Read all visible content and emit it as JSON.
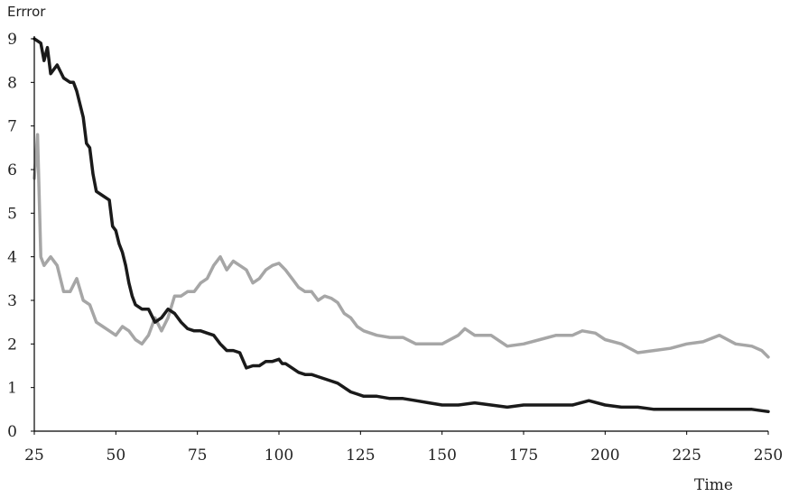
{
  "chart_data": {
    "type": "line",
    "title": "",
    "xlabel": "Time",
    "ylabel": "Errror",
    "xlim": [
      25,
      250
    ],
    "ylim": [
      0,
      9
    ],
    "xticks": [
      25,
      50,
      75,
      100,
      125,
      150,
      175,
      200,
      225,
      250
    ],
    "yticks": [
      0,
      1,
      2,
      3,
      4,
      5,
      6,
      7,
      8,
      9
    ],
    "grid": false,
    "legend": "none",
    "series": [
      {
        "color": "#1a1a1a",
        "x": [
          25,
          27,
          28,
          29,
          30,
          32,
          34,
          36,
          37,
          38,
          40,
          41,
          42,
          43,
          44,
          46,
          48,
          49,
          50,
          51,
          52,
          53,
          54,
          55,
          56,
          58,
          60,
          62,
          64,
          66,
          68,
          70,
          72,
          74,
          76,
          78,
          80,
          82,
          84,
          86,
          88,
          90,
          92,
          94,
          96,
          98,
          100,
          101,
          102,
          104,
          106,
          108,
          110,
          112,
          114,
          116,
          118,
          120,
          122,
          124,
          126,
          130,
          134,
          138,
          142,
          146,
          150,
          155,
          160,
          165,
          170,
          175,
          180,
          185,
          190,
          195,
          200,
          205,
          210,
          215,
          220,
          225,
          230,
          235,
          240,
          245,
          250
        ],
        "y": [
          9.0,
          8.9,
          8.5,
          8.8,
          8.2,
          8.4,
          8.1,
          8.0,
          8.0,
          7.8,
          7.2,
          6.6,
          6.5,
          5.9,
          5.5,
          5.4,
          5.3,
          4.7,
          4.6,
          4.3,
          4.1,
          3.8,
          3.4,
          3.1,
          2.9,
          2.8,
          2.8,
          2.5,
          2.6,
          2.8,
          2.7,
          2.5,
          2.35,
          2.3,
          2.3,
          2.25,
          2.2,
          2.0,
          1.85,
          1.85,
          1.8,
          1.45,
          1.5,
          1.5,
          1.6,
          1.6,
          1.65,
          1.55,
          1.55,
          1.45,
          1.35,
          1.3,
          1.3,
          1.25,
          1.2,
          1.15,
          1.1,
          1.0,
          0.9,
          0.85,
          0.8,
          0.8,
          0.75,
          0.75,
          0.7,
          0.65,
          0.6,
          0.6,
          0.65,
          0.6,
          0.55,
          0.6,
          0.6,
          0.6,
          0.6,
          0.7,
          0.6,
          0.55,
          0.55,
          0.5,
          0.5,
          0.5,
          0.5,
          0.5,
          0.5,
          0.5,
          0.45
        ]
      },
      {
        "color": "#a6a6a6",
        "x": [
          25,
          26,
          27,
          28,
          30,
          32,
          34,
          36,
          38,
          40,
          42,
          44,
          46,
          48,
          50,
          52,
          54,
          56,
          58,
          60,
          62,
          64,
          66,
          68,
          70,
          72,
          74,
          76,
          78,
          80,
          82,
          84,
          86,
          88,
          90,
          92,
          94,
          96,
          98,
          100,
          102,
          104,
          106,
          108,
          110,
          112,
          114,
          116,
          118,
          120,
          122,
          124,
          126,
          130,
          134,
          138,
          142,
          146,
          150,
          155,
          157,
          160,
          165,
          170,
          175,
          180,
          185,
          190,
          193,
          197,
          200,
          205,
          210,
          215,
          220,
          225,
          230,
          235,
          240,
          245,
          248,
          250
        ],
        "y": [
          5.8,
          6.8,
          4.0,
          3.8,
          4.0,
          3.8,
          3.2,
          3.2,
          3.5,
          3.0,
          2.9,
          2.5,
          2.4,
          2.3,
          2.2,
          2.4,
          2.3,
          2.1,
          2.0,
          2.2,
          2.6,
          2.3,
          2.6,
          3.1,
          3.1,
          3.2,
          3.2,
          3.4,
          3.5,
          3.8,
          4.0,
          3.7,
          3.9,
          3.8,
          3.7,
          3.4,
          3.5,
          3.7,
          3.8,
          3.85,
          3.7,
          3.5,
          3.3,
          3.2,
          3.2,
          3.0,
          3.1,
          3.05,
          2.95,
          2.7,
          2.6,
          2.4,
          2.3,
          2.2,
          2.15,
          2.15,
          2.0,
          2.0,
          2.0,
          2.2,
          2.35,
          2.2,
          2.2,
          1.95,
          2.0,
          2.1,
          2.2,
          2.2,
          2.3,
          2.25,
          2.1,
          2.0,
          1.8,
          1.85,
          1.9,
          2.0,
          2.05,
          2.2,
          2.0,
          1.95,
          1.85,
          1.7
        ]
      }
    ]
  }
}
